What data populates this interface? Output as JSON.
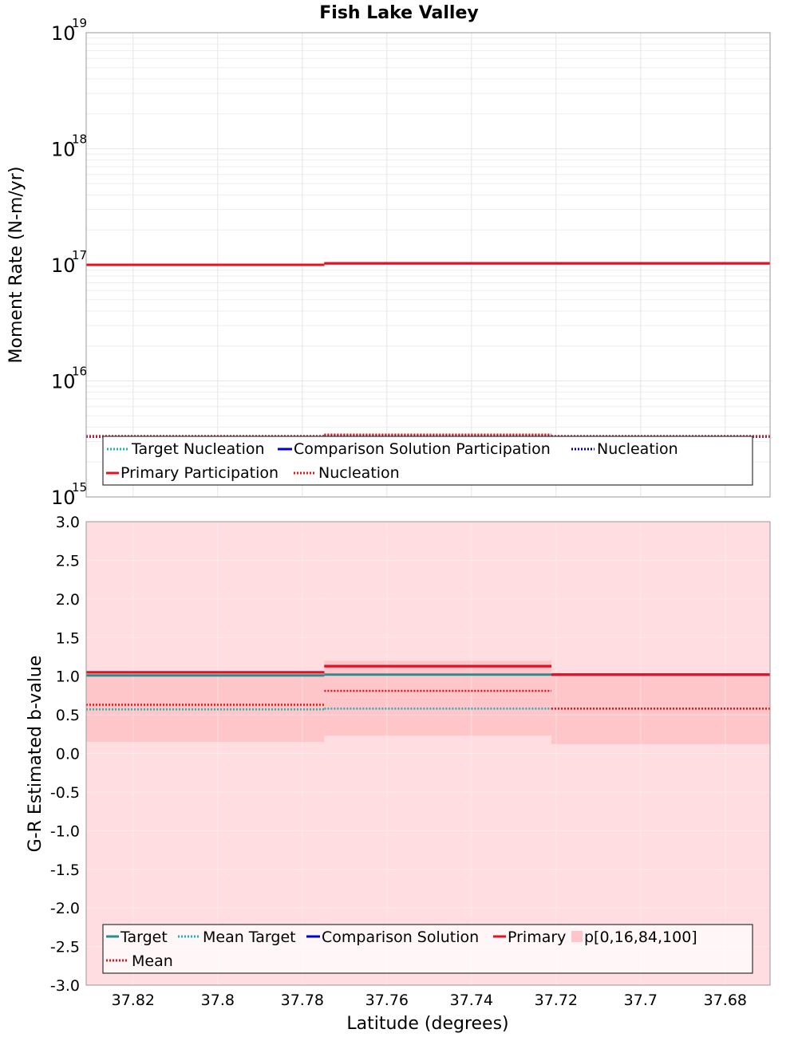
{
  "title": "Fish Lake Valley",
  "colors": {
    "target": "#2e8b8b",
    "mean_target": "#1fb3b3",
    "comparison": "#0000cc",
    "comparison_nucleation": "#000099",
    "primary": "#e8101c",
    "primary_nucleation": "#ee1111",
    "percentile_outer": "#ffdde0",
    "percentile_inner": "#ffc6c9",
    "grid": "#e6e6e6",
    "frame": "#999999"
  },
  "chart_data": [
    {
      "type": "line",
      "name": "moment-rate",
      "title": "Fish Lake Valley",
      "ylabel": "Moment Rate (N-m/yr)",
      "xlabel": "",
      "yscale": "log",
      "ylim": [
        1000000000000000.0,
        1e+19
      ],
      "xlim": [
        37.8311,
        37.6694
      ],
      "y_ticks": [
        {
          "base": "10",
          "exp": "15",
          "value": 1000000000000000.0
        },
        {
          "base": "10",
          "exp": "16",
          "value": 1e+16
        },
        {
          "base": "10",
          "exp": "17",
          "value": 1e+17
        },
        {
          "base": "10",
          "exp": "18",
          "value": 1e+18
        },
        {
          "base": "10",
          "exp": "19",
          "value": 1e+19
        }
      ],
      "segments": [
        37.8311,
        37.7748,
        37.7211,
        37.6694
      ],
      "series": [
        {
          "name": "Target Nucleation",
          "legend_label": "Target Nucleation",
          "color_key": "mean_target",
          "dash": "dotted",
          "values": [
            3350000000000000.0,
            3450000000000000.0,
            3350000000000000.0
          ]
        },
        {
          "name": "Comparison Solution Participation",
          "legend_label": "Comparison Solution Participation",
          "color_key": "comparison",
          "dash": "solid",
          "values": [
            1e+17,
            1.03e+17,
            1.03e+17
          ]
        },
        {
          "name": "Comparison Solution Nucleation",
          "legend_label": "Nucleation",
          "color_key": "comparison_nucleation",
          "dash": "dotted",
          "values": [
            3300000000000000.0,
            3400000000000000.0,
            3300000000000000.0
          ]
        },
        {
          "name": "Primary Participation",
          "legend_label": "Primary Participation",
          "color_key": "primary",
          "dash": "solid",
          "values": [
            1e+17,
            1.03e+17,
            1.03e+17
          ]
        },
        {
          "name": "Primary Nucleation",
          "legend_label": "Nucleation",
          "color_key": "primary_nucleation",
          "dash": "dotted",
          "values": [
            3350000000000000.0,
            3450000000000000.0,
            3350000000000000.0
          ]
        }
      ]
    },
    {
      "type": "line",
      "name": "b-value",
      "title": "",
      "ylabel": "G-R Estimated b-value",
      "xlabel": "Latitude (degrees)",
      "ylim": [
        -3.0,
        3.0
      ],
      "xlim": [
        37.8311,
        37.6694
      ],
      "y_ticks": [
        "-3.0",
        "-2.5",
        "-2.0",
        "-1.5",
        "-1.0",
        "-0.5",
        "0.0",
        "0.5",
        "1.0",
        "1.5",
        "2.0",
        "2.5",
        "3.0"
      ],
      "x_ticks": [
        "37.82",
        "37.8",
        "37.78",
        "37.76",
        "37.74",
        "37.72",
        "37.7",
        "37.68"
      ],
      "segments": [
        37.8311,
        37.7748,
        37.7211,
        37.6694
      ],
      "percentiles": {
        "p0": [
          -3.0,
          -3.0,
          -3.0
        ],
        "p16": [
          0.15,
          0.23,
          0.12
        ],
        "p84": [
          1.0,
          1.2,
          1.0
        ],
        "p100": [
          3.0,
          3.0,
          3.0
        ]
      },
      "series": [
        {
          "name": "Target",
          "legend_label": "Target",
          "color_key": "target",
          "dash": "solid",
          "values": [
            1.01,
            1.02,
            1.02
          ]
        },
        {
          "name": "Mean Target",
          "legend_label": "Mean Target",
          "color_key": "mean_target",
          "dash": "dotted",
          "values": [
            0.57,
            0.58,
            0.58
          ]
        },
        {
          "name": "Comparison Solution",
          "legend_label": "Comparison Solution",
          "color_key": "comparison",
          "dash": "solid",
          "values": [
            1.05,
            1.13,
            1.02
          ]
        },
        {
          "name": "Primary",
          "legend_label": "Primary",
          "color_key": "primary",
          "dash": "solid",
          "values": [
            1.05,
            1.13,
            1.02
          ]
        },
        {
          "name": "Mean",
          "legend_label": "Mean",
          "color_key": "primary_nucleation",
          "dash": "dotted",
          "values": [
            0.63,
            0.81,
            0.58
          ]
        }
      ],
      "percentile_legend_label": "p[0,16,84,100]"
    }
  ]
}
